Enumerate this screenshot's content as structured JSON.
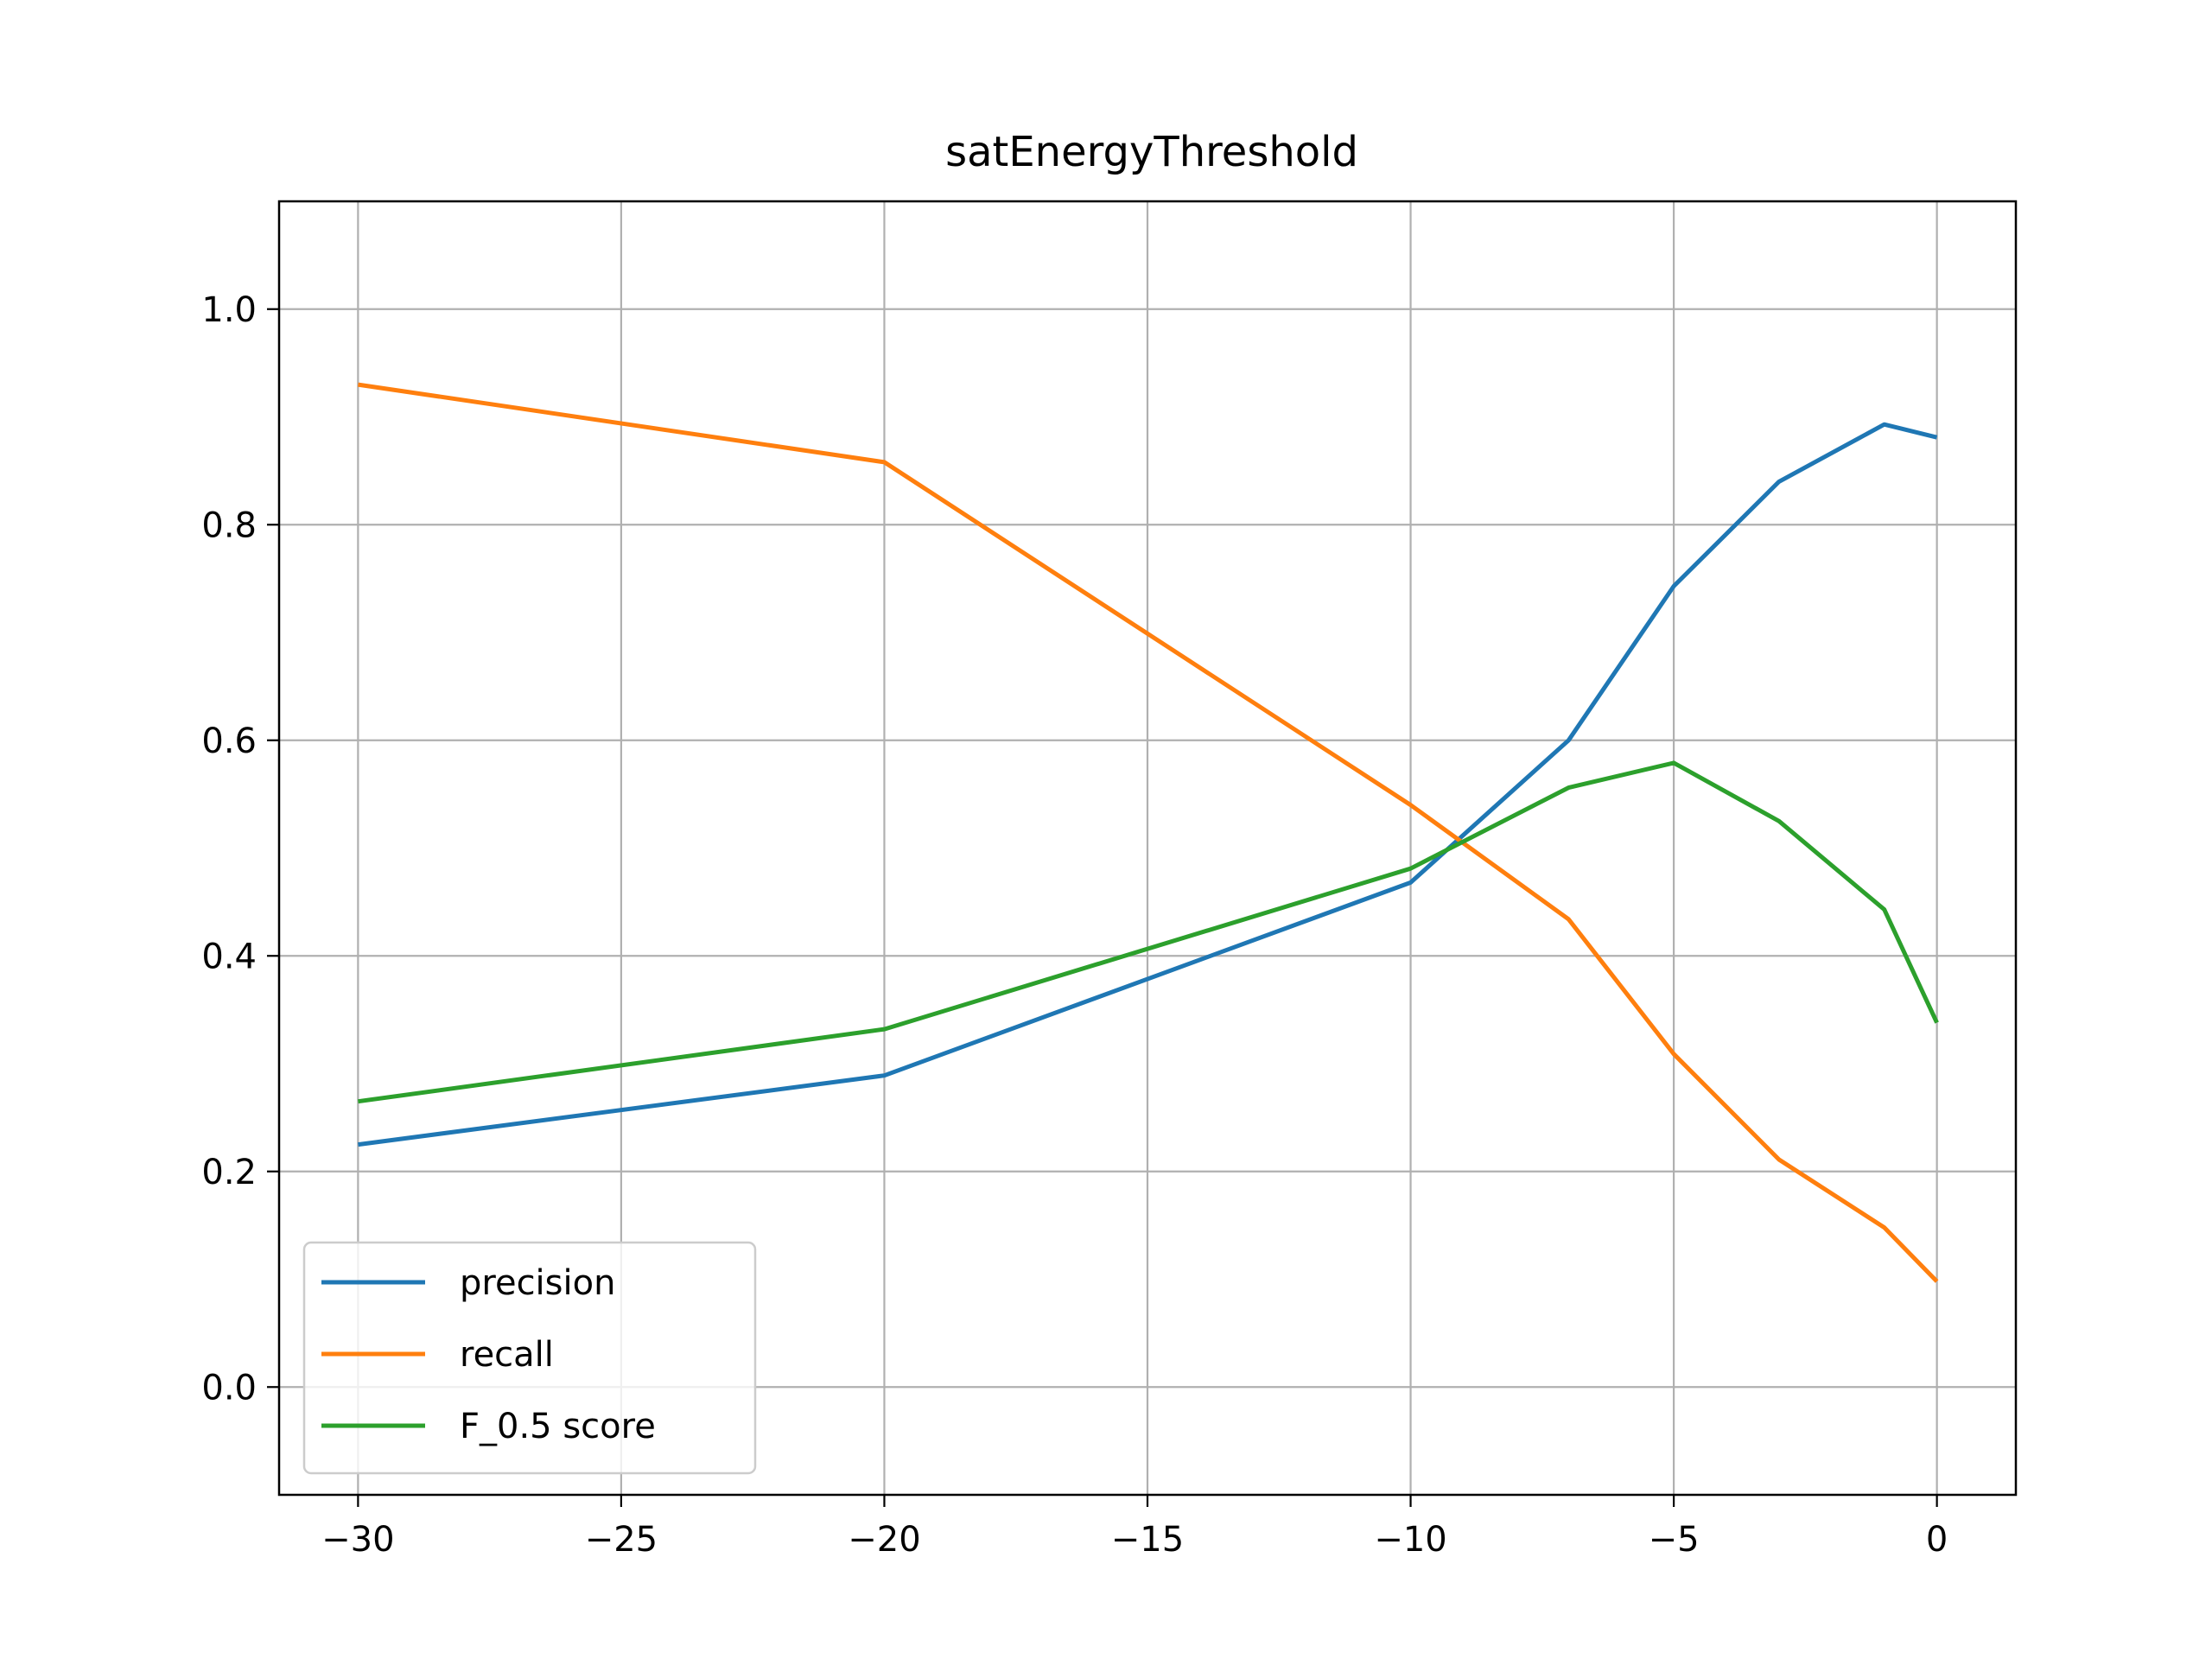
{
  "chart_data": {
    "type": "line",
    "title": "satEnergyThreshold",
    "xlabel": "",
    "ylabel": "",
    "xlim": [
      -31.5,
      1.5
    ],
    "ylim": [
      -0.1,
      1.1
    ],
    "x_ticks": [
      -30,
      -25,
      -20,
      -15,
      -10,
      -5,
      0
    ],
    "x_tick_labels": [
      "−30",
      "−25",
      "−20",
      "−15",
      "−10",
      "−5",
      "0"
    ],
    "y_ticks": [
      0.0,
      0.2,
      0.4,
      0.6,
      0.8,
      1.0
    ],
    "y_tick_labels": [
      "0.0",
      "0.2",
      "0.4",
      "0.6",
      "0.8",
      "1.0"
    ],
    "grid": true,
    "legend_position": "lower-left",
    "x": [
      -30,
      -20,
      -10,
      -7,
      -5,
      -3,
      -1,
      0
    ],
    "series": [
      {
        "name": "precision",
        "color": "#1f77b4",
        "values": [
          0.225,
          0.289,
          0.468,
          0.6,
          0.743,
          0.84,
          0.893,
          0.881
        ]
      },
      {
        "name": "recall",
        "color": "#ff7f0e",
        "values": [
          0.93,
          0.858,
          0.54,
          0.434,
          0.309,
          0.211,
          0.148,
          0.098
        ]
      },
      {
        "name": "F_0.5 score",
        "color": "#2ca02c",
        "values": [
          0.265,
          0.332,
          0.481,
          0.556,
          0.579,
          0.525,
          0.443,
          0.338
        ]
      }
    ]
  }
}
